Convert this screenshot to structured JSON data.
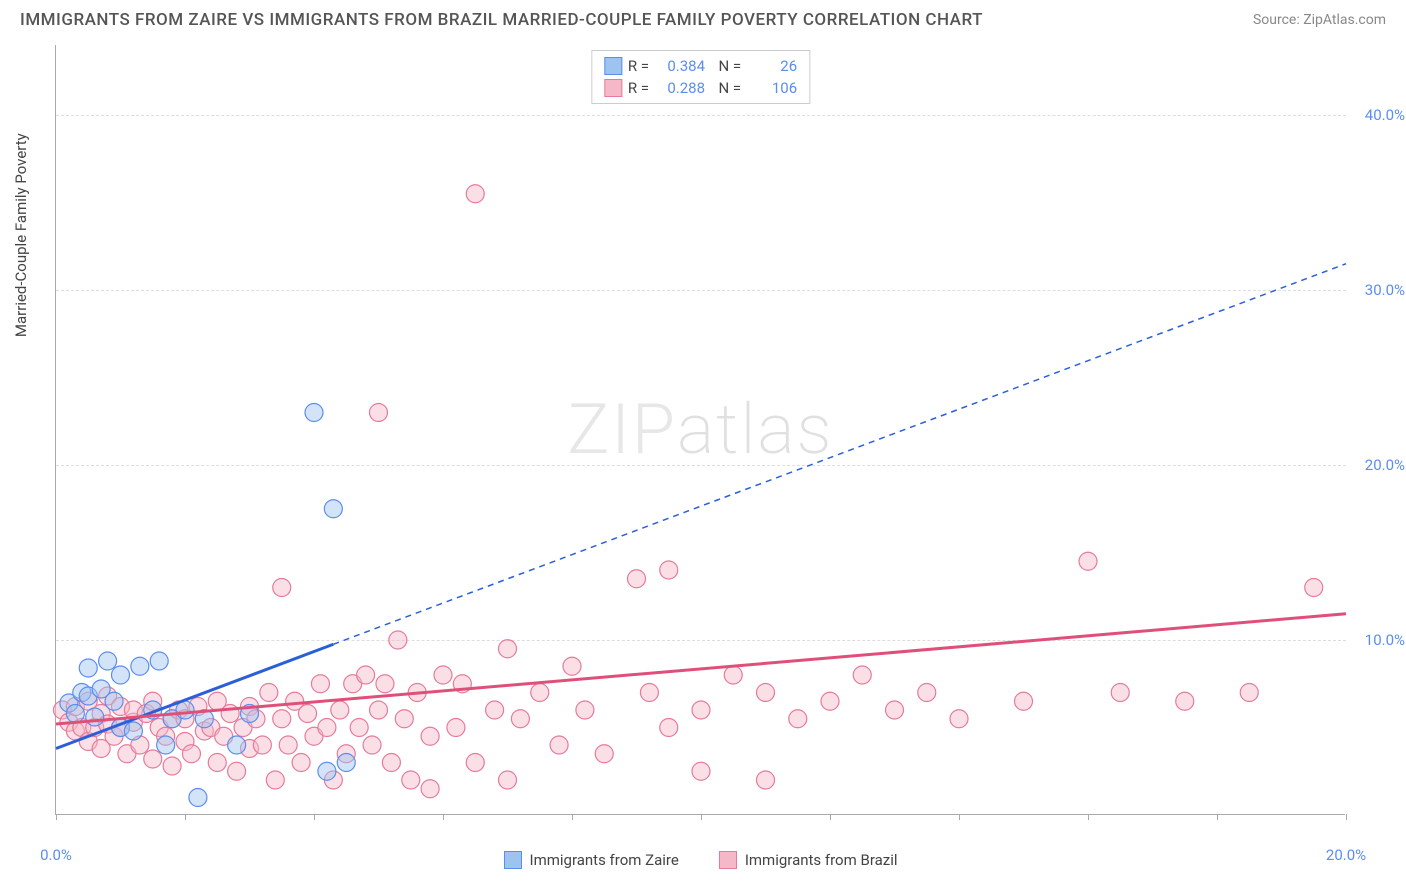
{
  "header": {
    "title": "IMMIGRANTS FROM ZAIRE VS IMMIGRANTS FROM BRAZIL MARRIED-COUPLE FAMILY POVERTY CORRELATION CHART",
    "source": "Source: ZipAtlas.com"
  },
  "watermark": {
    "part1": "ZIP",
    "part2": "atlas"
  },
  "chart": {
    "type": "scatter",
    "background_color": "#ffffff",
    "grid_color": "#dddddd",
    "axis_color": "#aaaaaa",
    "y_axis_label": "Married-Couple Family Poverty",
    "xlim": [
      0,
      20
    ],
    "ylim": [
      0,
      44
    ],
    "x_ticks": [
      0,
      2,
      4,
      6,
      8,
      10,
      12,
      14,
      16,
      18,
      20
    ],
    "x_tick_labels": {
      "0": "0.0%",
      "20": "20.0%"
    },
    "y_gridlines": [
      10,
      20,
      30,
      40
    ],
    "y_tick_labels": {
      "10": "10.0%",
      "20": "20.0%",
      "30": "30.0%",
      "40": "40.0%"
    },
    "tick_label_color": "#5b8def",
    "marker_radius": 9,
    "marker_opacity": 0.45,
    "series": [
      {
        "id": "zaire",
        "label": "Immigrants from Zaire",
        "fill_color": "#9dc3ef",
        "stroke_color": "#5b8def",
        "line_color": "#2b5fd9",
        "line_solid_until_x": 4.3,
        "R": "0.384",
        "N": "26",
        "trend": {
          "x1": 0,
          "y1": 3.8,
          "x2": 20,
          "y2": 31.5
        },
        "points": [
          [
            0.2,
            6.4
          ],
          [
            0.3,
            5.8
          ],
          [
            0.4,
            7.0
          ],
          [
            0.5,
            6.8
          ],
          [
            0.5,
            8.4
          ],
          [
            0.6,
            5.6
          ],
          [
            0.7,
            7.2
          ],
          [
            0.8,
            8.8
          ],
          [
            0.9,
            6.5
          ],
          [
            1.0,
            5.0
          ],
          [
            1.0,
            8.0
          ],
          [
            1.2,
            4.8
          ],
          [
            1.3,
            8.5
          ],
          [
            1.5,
            6.0
          ],
          [
            1.6,
            8.8
          ],
          [
            1.7,
            4.0
          ],
          [
            1.8,
            5.5
          ],
          [
            2.0,
            6.0
          ],
          [
            2.2,
            1.0
          ],
          [
            2.3,
            5.5
          ],
          [
            2.8,
            4.0
          ],
          [
            3.0,
            5.8
          ],
          [
            4.2,
            2.5
          ],
          [
            4.3,
            17.5
          ],
          [
            4.0,
            23.0
          ],
          [
            4.5,
            3.0
          ]
        ]
      },
      {
        "id": "brazil",
        "label": "Immigrants from Brazil",
        "fill_color": "#f5b8c8",
        "stroke_color": "#e77a9b",
        "line_color": "#e04f7a",
        "line_solid_until_x": 20,
        "R": "0.288",
        "N": "106",
        "trend": {
          "x1": 0,
          "y1": 5.2,
          "x2": 20,
          "y2": 11.5
        },
        "points": [
          [
            0.1,
            6.0
          ],
          [
            0.2,
            5.3
          ],
          [
            0.3,
            6.2
          ],
          [
            0.3,
            4.8
          ],
          [
            0.4,
            5.0
          ],
          [
            0.5,
            6.5
          ],
          [
            0.5,
            4.2
          ],
          [
            0.6,
            5.0
          ],
          [
            0.7,
            5.8
          ],
          [
            0.7,
            3.8
          ],
          [
            0.8,
            5.2
          ],
          [
            0.8,
            6.8
          ],
          [
            0.9,
            4.5
          ],
          [
            1.0,
            5.0
          ],
          [
            1.0,
            6.2
          ],
          [
            1.1,
            3.5
          ],
          [
            1.2,
            5.3
          ],
          [
            1.2,
            6.0
          ],
          [
            1.3,
            4.0
          ],
          [
            1.4,
            5.8
          ],
          [
            1.5,
            3.2
          ],
          [
            1.5,
            6.5
          ],
          [
            1.6,
            5.0
          ],
          [
            1.7,
            4.5
          ],
          [
            1.8,
            5.5
          ],
          [
            1.8,
            2.8
          ],
          [
            1.9,
            6.0
          ],
          [
            2.0,
            4.2
          ],
          [
            2.0,
            5.5
          ],
          [
            2.1,
            3.5
          ],
          [
            2.2,
            6.2
          ],
          [
            2.3,
            4.8
          ],
          [
            2.4,
            5.0
          ],
          [
            2.5,
            3.0
          ],
          [
            2.5,
            6.5
          ],
          [
            2.6,
            4.5
          ],
          [
            2.7,
            5.8
          ],
          [
            2.8,
            2.5
          ],
          [
            2.9,
            5.0
          ],
          [
            3.0,
            6.2
          ],
          [
            3.0,
            3.8
          ],
          [
            3.1,
            5.5
          ],
          [
            3.2,
            4.0
          ],
          [
            3.3,
            7.0
          ],
          [
            3.4,
            2.0
          ],
          [
            3.5,
            5.5
          ],
          [
            3.5,
            13.0
          ],
          [
            3.6,
            4.0
          ],
          [
            3.7,
            6.5
          ],
          [
            3.8,
            3.0
          ],
          [
            3.9,
            5.8
          ],
          [
            4.0,
            4.5
          ],
          [
            4.1,
            7.5
          ],
          [
            4.2,
            5.0
          ],
          [
            4.3,
            2.0
          ],
          [
            4.4,
            6.0
          ],
          [
            4.5,
            3.5
          ],
          [
            4.6,
            7.5
          ],
          [
            4.7,
            5.0
          ],
          [
            4.8,
            8.0
          ],
          [
            4.9,
            4.0
          ],
          [
            5.0,
            6.0
          ],
          [
            5.0,
            23.0
          ],
          [
            5.1,
            7.5
          ],
          [
            5.2,
            3.0
          ],
          [
            5.3,
            10.0
          ],
          [
            5.4,
            5.5
          ],
          [
            5.5,
            2.0
          ],
          [
            5.6,
            7.0
          ],
          [
            5.8,
            4.5
          ],
          [
            5.8,
            1.5
          ],
          [
            6.0,
            8.0
          ],
          [
            6.2,
            5.0
          ],
          [
            6.3,
            7.5
          ],
          [
            6.5,
            3.0
          ],
          [
            6.5,
            35.5
          ],
          [
            6.8,
            6.0
          ],
          [
            7.0,
            2.0
          ],
          [
            7.0,
            9.5
          ],
          [
            7.2,
            5.5
          ],
          [
            7.5,
            7.0
          ],
          [
            7.8,
            4.0
          ],
          [
            8.0,
            8.5
          ],
          [
            8.2,
            6.0
          ],
          [
            8.5,
            3.5
          ],
          [
            9.0,
            13.5
          ],
          [
            9.2,
            7.0
          ],
          [
            9.5,
            5.0
          ],
          [
            9.5,
            14.0
          ],
          [
            10.0,
            6.0
          ],
          [
            10.0,
            2.5
          ],
          [
            10.5,
            8.0
          ],
          [
            11.0,
            2.0
          ],
          [
            11.0,
            7.0
          ],
          [
            11.5,
            5.5
          ],
          [
            12.0,
            6.5
          ],
          [
            12.5,
            8.0
          ],
          [
            13.0,
            6.0
          ],
          [
            13.5,
            7.0
          ],
          [
            14.0,
            5.5
          ],
          [
            15.0,
            6.5
          ],
          [
            16.0,
            14.5
          ],
          [
            16.5,
            7.0
          ],
          [
            17.5,
            6.5
          ],
          [
            18.5,
            7.0
          ],
          [
            19.5,
            13.0
          ]
        ]
      }
    ]
  }
}
